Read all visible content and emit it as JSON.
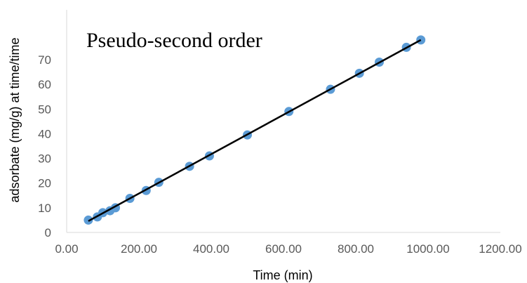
{
  "chart_data": {
    "type": "scatter",
    "title": "Pseudo-second  order",
    "xlabel": "Time (min)",
    "ylabel": "adsorbate (mg/g) at time/time",
    "xlim": [
      0,
      1200
    ],
    "ylim": [
      0,
      80
    ],
    "x_ticks": [
      "0.00",
      "200.00",
      "400.00",
      "600.00",
      "800.00",
      "1000.00",
      "1200.00"
    ],
    "x_tick_values": [
      0,
      200,
      400,
      600,
      800,
      1000,
      1200
    ],
    "y_ticks": [
      "0",
      "10",
      "20",
      "30",
      "40",
      "50",
      "60",
      "70"
    ],
    "y_tick_values": [
      0,
      10,
      20,
      30,
      40,
      50,
      60,
      70
    ],
    "grid": false,
    "legend": "none",
    "series": [
      {
        "points": [
          [
            60,
            5
          ],
          [
            85,
            6.3
          ],
          [
            100,
            8
          ],
          [
            120,
            8.8
          ],
          [
            135,
            10
          ],
          [
            175,
            13.8
          ],
          [
            220,
            17
          ],
          [
            255,
            20.3
          ],
          [
            340,
            26.8
          ],
          [
            395,
            31
          ],
          [
            500,
            39.5
          ],
          [
            615,
            49
          ],
          [
            730,
            58
          ],
          [
            810,
            64.5
          ],
          [
            865,
            69
          ],
          [
            940,
            75
          ],
          [
            980,
            78
          ]
        ],
        "color": "#5b9bd5"
      }
    ],
    "trendline": {
      "from": [
        60,
        4.6
      ],
      "to": [
        980,
        78
      ],
      "color": "#000000"
    }
  }
}
